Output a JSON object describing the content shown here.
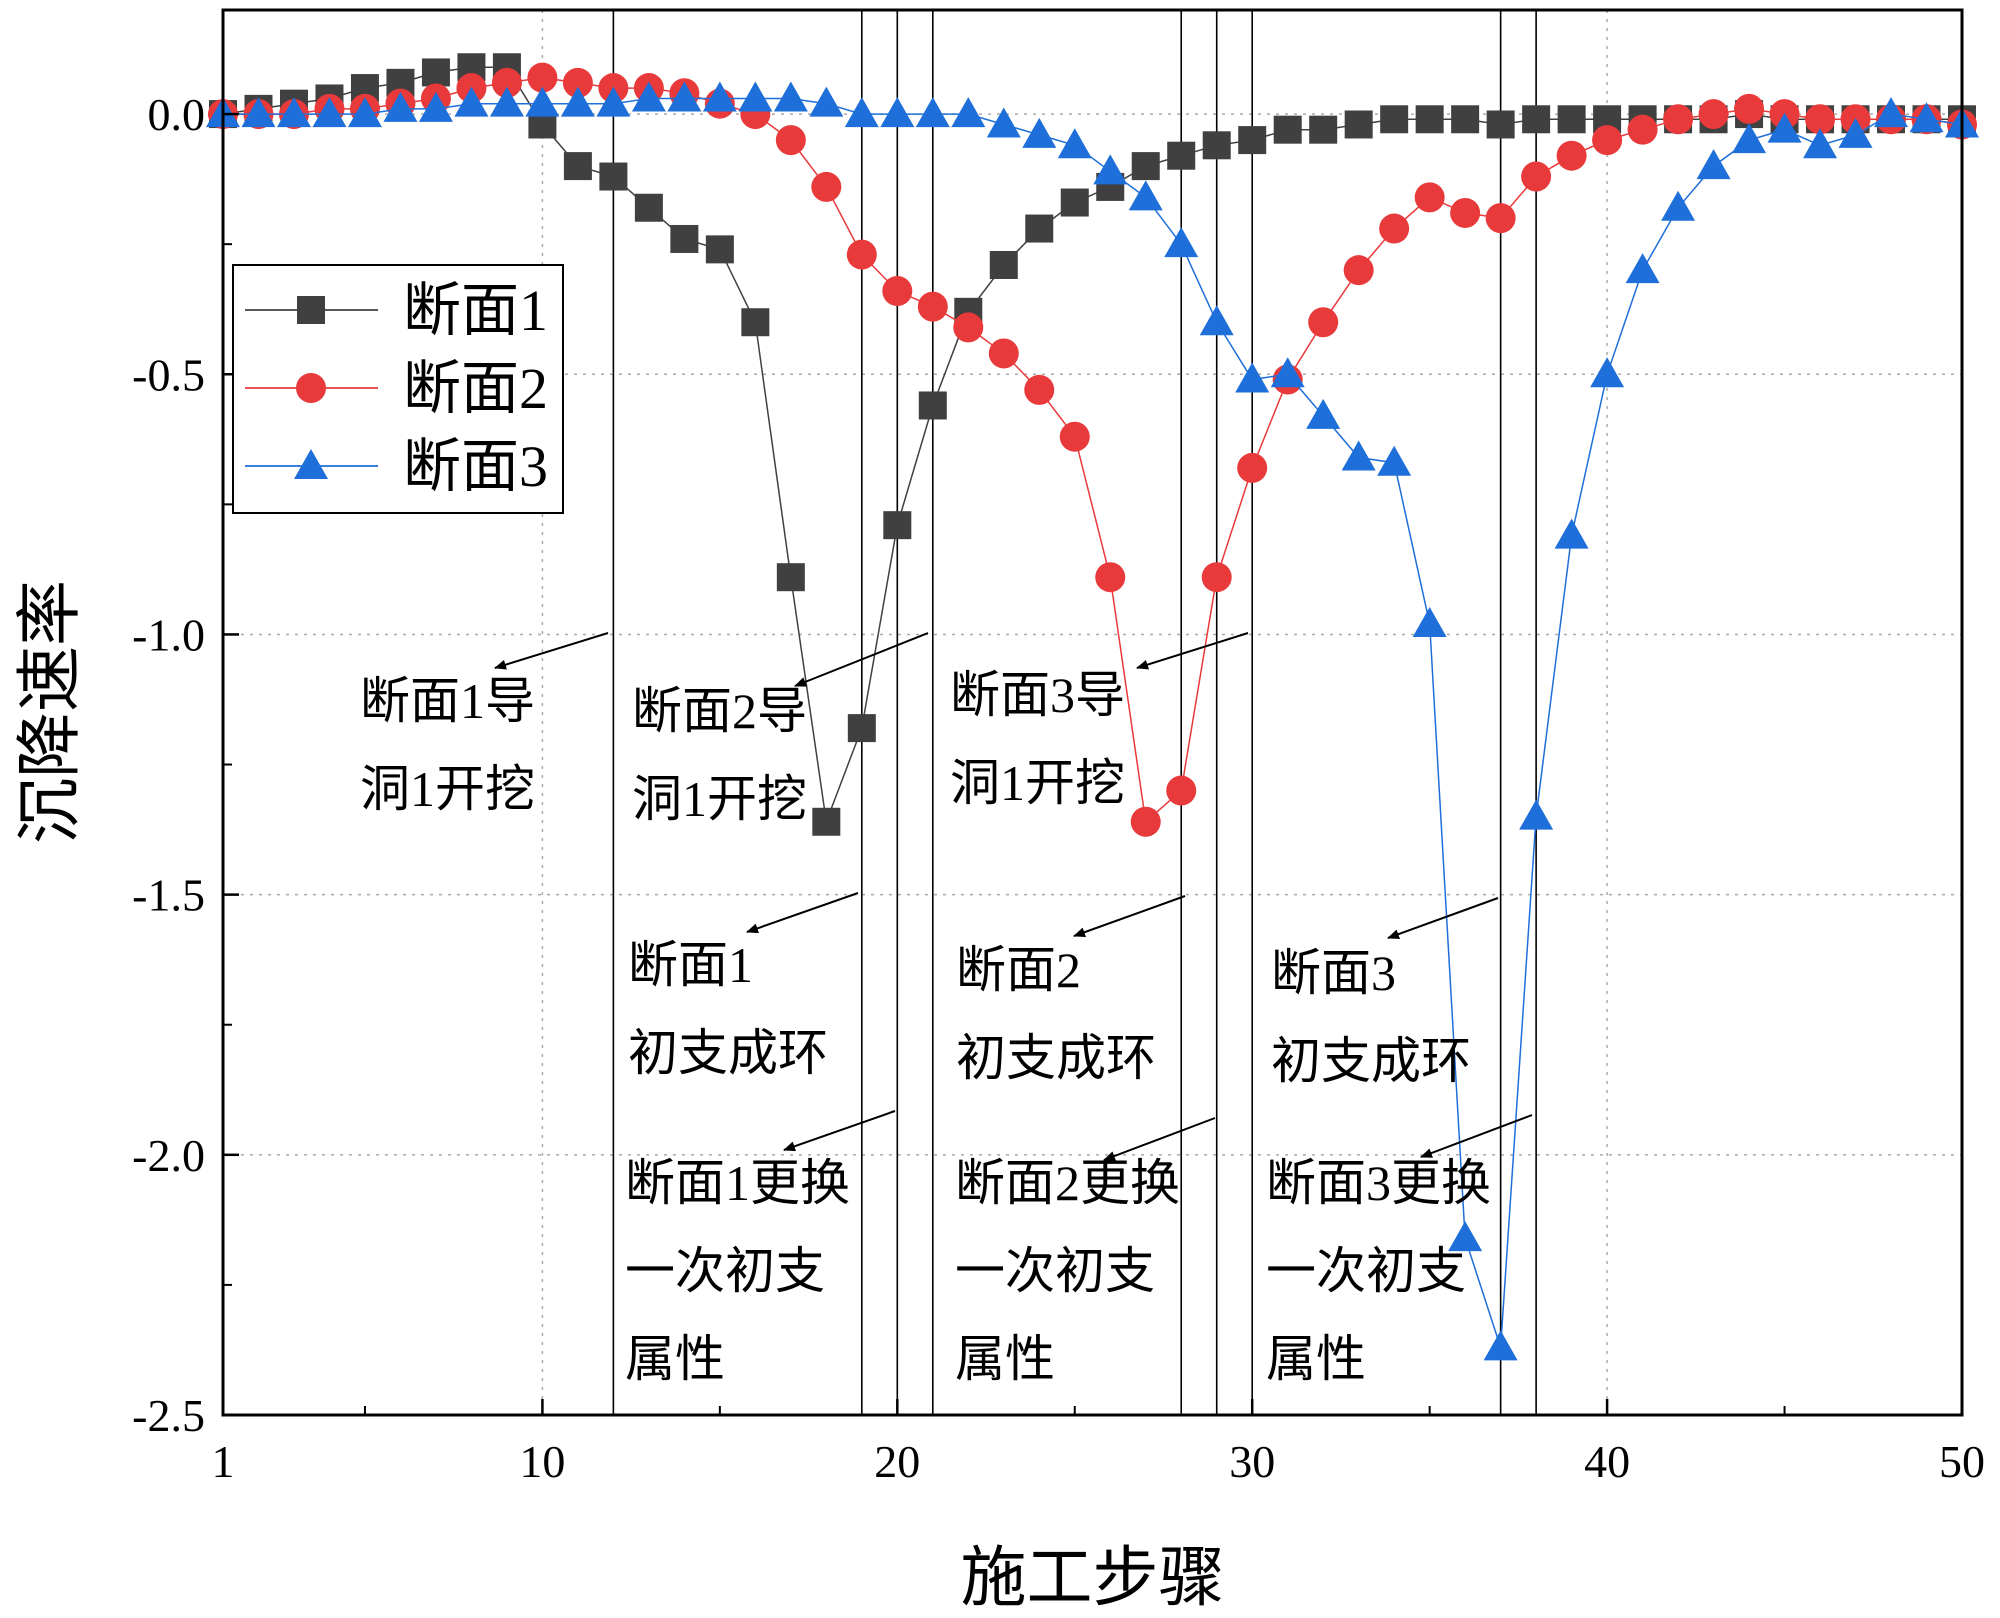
{
  "chart_data": {
    "type": "line",
    "xlabel": "施工步骤",
    "ylabel": "沉降速率",
    "xlim": [
      1,
      50
    ],
    "ylim": [
      -2.5,
      0.2
    ],
    "xticks": [
      1,
      10,
      20,
      30,
      40,
      50
    ],
    "xtick_labels": [
      "1",
      "10",
      "20",
      "30",
      "40",
      "50"
    ],
    "yticks": [
      0.0,
      -0.5,
      -1.0,
      -1.5,
      -2.0,
      -2.5
    ],
    "ytick_labels": [
      "0.0",
      "-0.5",
      "-1.0",
      "-1.5",
      "-2.0",
      "-2.5"
    ],
    "grid": "dotted",
    "legend_position": "upper-left",
    "x": [
      1,
      2,
      3,
      4,
      5,
      6,
      7,
      8,
      9,
      10,
      11,
      12,
      13,
      14,
      15,
      16,
      17,
      18,
      19,
      20,
      21,
      22,
      23,
      24,
      25,
      26,
      27,
      28,
      29,
      30,
      31,
      32,
      33,
      34,
      35,
      36,
      37,
      38,
      39,
      40,
      41,
      42,
      43,
      44,
      45,
      46,
      47,
      48,
      49,
      50
    ],
    "series": [
      {
        "name": "断面1",
        "color": "#404040",
        "marker": "square",
        "values": [
          0.0,
          0.01,
          0.02,
          0.03,
          0.05,
          0.06,
          0.08,
          0.09,
          0.09,
          -0.02,
          -0.1,
          -0.12,
          -0.18,
          -0.24,
          -0.26,
          -0.4,
          -0.89,
          -1.36,
          -1.18,
          -0.79,
          -0.56,
          -0.38,
          -0.29,
          -0.22,
          -0.17,
          -0.14,
          -0.1,
          -0.08,
          -0.06,
          -0.05,
          -0.03,
          -0.03,
          -0.02,
          -0.01,
          -0.01,
          -0.01,
          -0.02,
          -0.01,
          -0.01,
          -0.01,
          -0.01,
          -0.01,
          -0.01,
          0.0,
          -0.01,
          -0.01,
          -0.01,
          -0.01,
          -0.01,
          -0.01
        ]
      },
      {
        "name": "断面2",
        "color": "#e8393b",
        "marker": "circle",
        "values": [
          0.0,
          0.0,
          0.0,
          0.01,
          0.01,
          0.02,
          0.03,
          0.05,
          0.06,
          0.07,
          0.06,
          0.05,
          0.05,
          0.04,
          0.02,
          0.0,
          -0.05,
          -0.14,
          -0.27,
          -0.34,
          -0.37,
          -0.41,
          -0.46,
          -0.53,
          -0.62,
          -0.89,
          -1.36,
          -1.3,
          -0.89,
          -0.68,
          -0.51,
          -0.4,
          -0.3,
          -0.22,
          -0.16,
          -0.19,
          -0.2,
          -0.12,
          -0.08,
          -0.05,
          -0.03,
          -0.01,
          0.0,
          0.01,
          0.0,
          -0.01,
          -0.01,
          -0.01,
          -0.01,
          -0.02
        ]
      },
      {
        "name": "断面3",
        "color": "#1e6fd9",
        "marker": "triangle",
        "values": [
          0.0,
          0.0,
          0.0,
          0.0,
          0.0,
          0.01,
          0.01,
          0.02,
          0.02,
          0.02,
          0.02,
          0.02,
          0.03,
          0.03,
          0.03,
          0.03,
          0.03,
          0.02,
          0.0,
          0.0,
          0.0,
          0.0,
          -0.02,
          -0.04,
          -0.06,
          -0.11,
          -0.16,
          -0.25,
          -0.4,
          -0.51,
          -0.5,
          -0.58,
          -0.66,
          -0.67,
          -0.98,
          -2.16,
          -2.37,
          -1.35,
          -0.81,
          -0.5,
          -0.3,
          -0.18,
          -0.1,
          -0.05,
          -0.03,
          -0.06,
          -0.04,
          0.0,
          -0.01,
          -0.02
        ]
      }
    ],
    "vertical_lines": [
      12,
      19,
      20,
      21,
      28,
      29,
      30,
      37,
      38
    ],
    "annotations": [
      {
        "id": "a1",
        "lines": [
          "断面1导",
          "洞1开挖"
        ]
      },
      {
        "id": "a2",
        "lines": [
          "断面2导",
          "洞1开挖"
        ]
      },
      {
        "id": "a3",
        "lines": [
          "断面3导",
          "洞1开挖"
        ]
      },
      {
        "id": "a4",
        "lines": [
          "断面1",
          "初支成环"
        ]
      },
      {
        "id": "a5",
        "lines": [
          "断面2",
          "初支成环"
        ]
      },
      {
        "id": "a6",
        "lines": [
          "断面3",
          "初支成环"
        ]
      },
      {
        "id": "a7",
        "lines": [
          "断面1更换",
          "一次初支",
          "属性"
        ]
      },
      {
        "id": "a8",
        "lines": [
          "断面2更换",
          "一次初支",
          "属性"
        ]
      },
      {
        "id": "a9",
        "lines": [
          "断面3更换",
          "一次初支",
          "属性"
        ]
      }
    ]
  }
}
